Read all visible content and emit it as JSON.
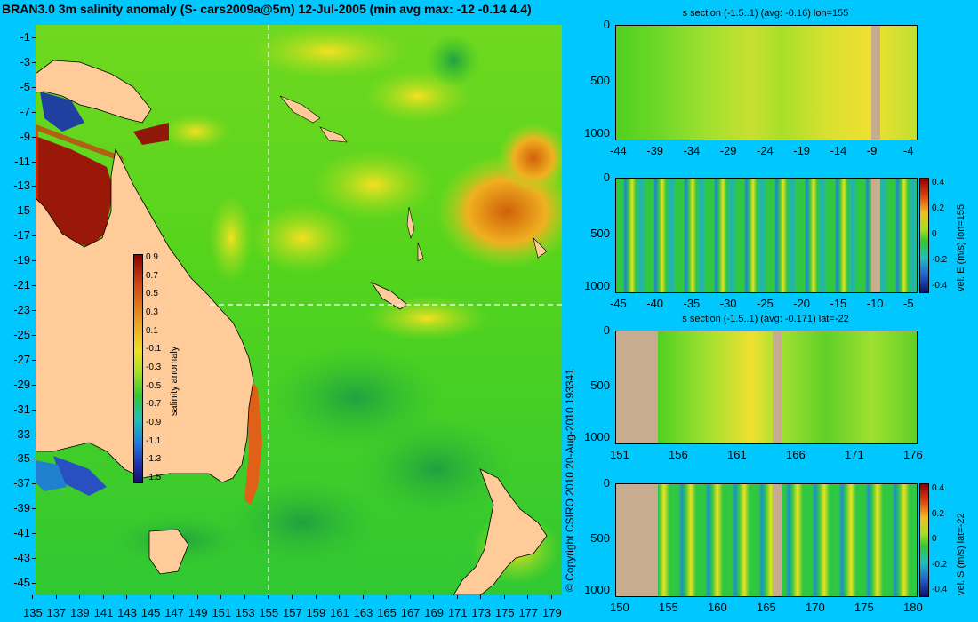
{
  "main_title": "BRAN3.0 3m salinity anomaly (S- cars2009a@5m) 12-Jul-2005 (min avg max: -12 -0.14 4.4)",
  "copyright": "© Copyright CSIRO 2010   20-Aug-2010 193341",
  "map": {
    "lon_ticks": [
      "135",
      "137",
      "139",
      "141",
      "143",
      "145",
      "147",
      "149",
      "151",
      "153",
      "155",
      "157",
      "159",
      "161",
      "163",
      "165",
      "167",
      "169",
      "171",
      "173",
      "175",
      "177",
      "179"
    ],
    "lat_ticks": [
      "-1",
      "-3",
      "-5",
      "-7",
      "-9",
      "-11",
      "-13",
      "-15",
      "-17",
      "-19",
      "-21",
      "-23",
      "-25",
      "-27",
      "-29",
      "-31",
      "-33",
      "-35",
      "-37",
      "-39",
      "-41",
      "-43",
      "-45"
    ],
    "section_lon": 155,
    "section_lat": -22,
    "colorbar": {
      "label": "salinity anomaly",
      "ticks": [
        "0.9",
        "0.7",
        "0.5",
        "0.3",
        "0.1",
        "-0.1",
        "-0.3",
        "-0.5",
        "-0.7",
        "-0.9",
        "-1.1",
        "-1.3",
        "-1.5"
      ]
    }
  },
  "panels": [
    {
      "title": "s section (-1.5..1) (avg: -0.16) lon=155",
      "x_ticks": [
        "-44",
        "-39",
        "-34",
        "-29",
        "-24",
        "-19",
        "-14",
        "-9",
        "-4"
      ],
      "y_ticks": [
        "0",
        "500",
        "1000"
      ],
      "cbar_label": "",
      "cbar_ticks": []
    },
    {
      "title": "",
      "x_ticks": [
        "-45",
        "-40",
        "-35",
        "-30",
        "-25",
        "-20",
        "-15",
        "-10",
        "-5"
      ],
      "y_ticks": [
        "0",
        "500",
        "1000"
      ],
      "cbar_label": "vel. E (m/s) lon=155",
      "cbar_ticks": [
        "0.4",
        "0.2",
        "0",
        "-0.2",
        "-0.4"
      ]
    },
    {
      "title": "s section (-1.5..1) (avg: -0.171) lat=-22",
      "x_ticks": [
        "151",
        "156",
        "161",
        "166",
        "171",
        "176"
      ],
      "y_ticks": [
        "0",
        "500",
        "1000"
      ],
      "cbar_label": "",
      "cbar_ticks": []
    },
    {
      "title": "",
      "x_ticks": [
        "150",
        "155",
        "160",
        "165",
        "170",
        "175",
        "180"
      ],
      "y_ticks": [
        "0",
        "500",
        "1000"
      ],
      "cbar_label": "vel. S (m/s) lat=-22",
      "cbar_ticks": [
        "0.4",
        "0.2",
        "0",
        "-0.2",
        "-0.4"
      ]
    }
  ]
}
